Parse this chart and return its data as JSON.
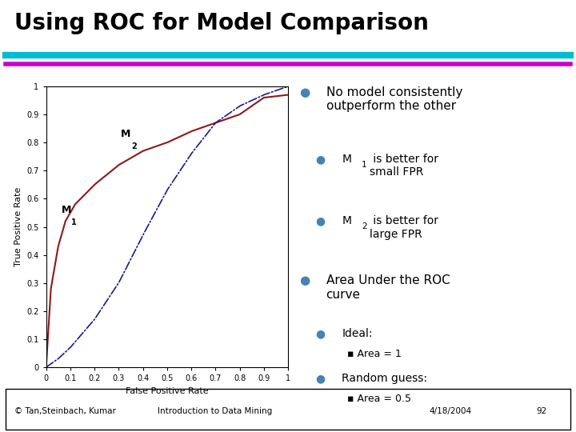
{
  "title": "Using ROC for Model Comparison",
  "title_fontsize": 20,
  "title_fontweight": "bold",
  "title_color": "#000000",
  "bg_color": "#ffffff",
  "bar1_color": "#00bcd4",
  "bar2_color": "#cc00cc",
  "xlabel": "False Positive Rate",
  "ylabel": "True Positive Rate",
  "xlim": [
    0,
    1
  ],
  "ylim": [
    0,
    1
  ],
  "bullet_color": "#4682b4",
  "footer_text": [
    "© Tan,Steinbach, Kumar",
    "Introduction to Data Mining",
    "4/18/2004",
    "92"
  ],
  "M1_label": "M",
  "M1_sub": "1",
  "M2_label": "M",
  "M2_sub": "2",
  "line1_color": "#8b1a1a",
  "line2_color": "#1a1a8b",
  "ytick_labels": [
    "0",
    "0.1",
    "0.2",
    "0.3",
    "0.4",
    "0.5",
    "0.6",
    "0.7",
    "0.8",
    "0.9",
    "1"
  ],
  "xtick_labels": [
    "0",
    "0.1",
    "0.2",
    "0.3",
    "0.4",
    "0.5",
    "0.6",
    "0.7",
    "0.8",
    "0.9",
    "1"
  ]
}
